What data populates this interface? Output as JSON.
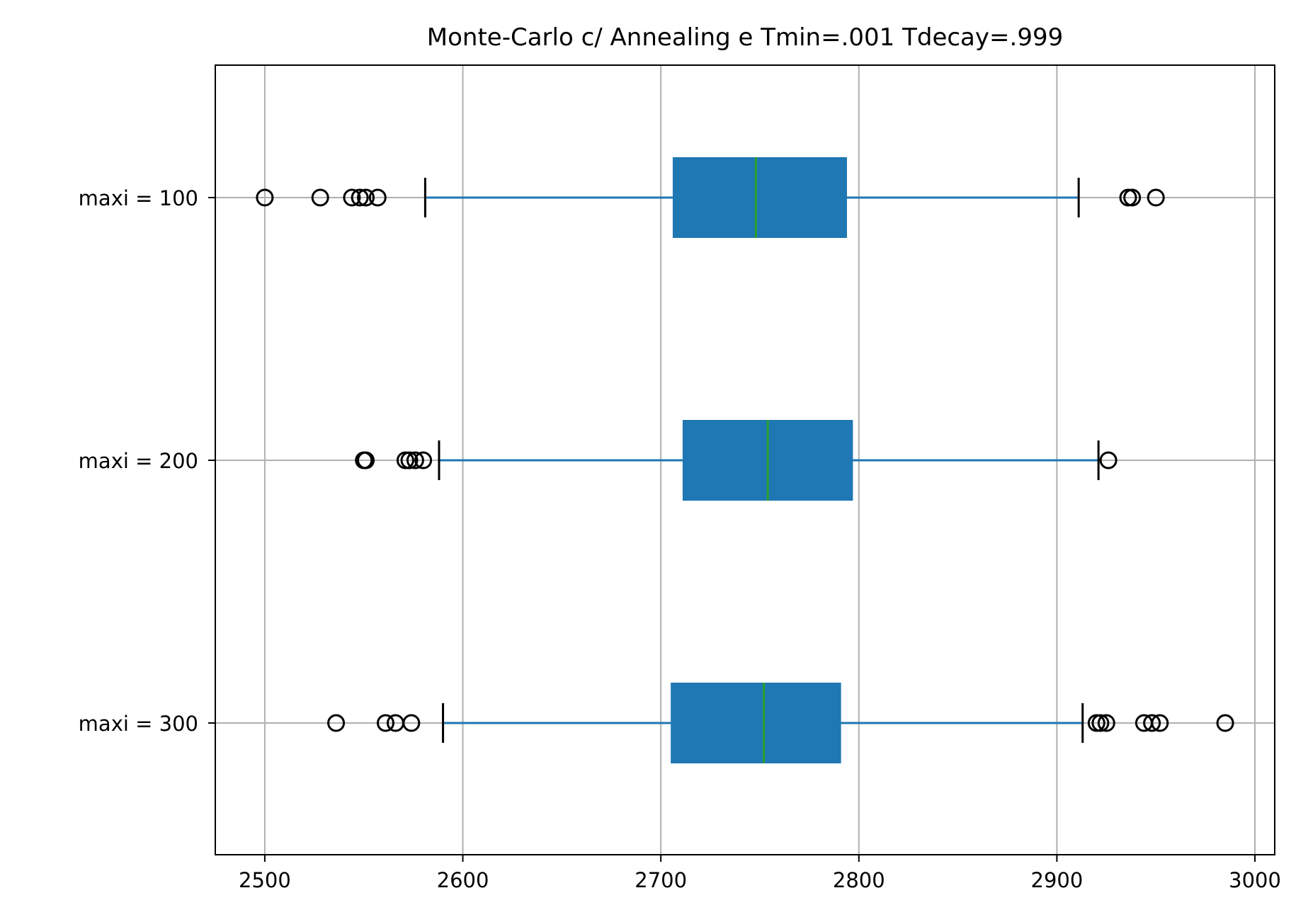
{
  "chart_data": {
    "type": "boxplot",
    "orientation": "horizontal",
    "title": "Monte-Carlo c/ Annealing e Tmin=.001 Tdecay=.999",
    "xlabel": "",
    "ylabel": "",
    "xlim": [
      2475,
      3010
    ],
    "xticks": [
      2500,
      2600,
      2700,
      2800,
      2900,
      3000
    ],
    "grid": true,
    "colors": {
      "box": "#1f77b4",
      "median": "#2ca02c",
      "whisker": "#1f77b4",
      "cap": "#000000",
      "flier": "#000000",
      "grid": "#b0b0b0"
    },
    "categories": [
      "maxi = 100",
      "maxi = 200",
      "maxi = 300"
    ],
    "boxes": [
      {
        "label": "maxi = 100",
        "whislo": 2581,
        "q1": 2706,
        "med": 2748,
        "q3": 2794,
        "whishi": 2911,
        "fliers": [
          2500,
          2528,
          2544,
          2548,
          2551,
          2557,
          2936,
          2938,
          2950
        ]
      },
      {
        "label": "maxi = 200",
        "whislo": 2588,
        "q1": 2711,
        "med": 2754,
        "q3": 2797,
        "whishi": 2921,
        "fliers": [
          2550,
          2551,
          2571,
          2573,
          2576,
          2580,
          2926
        ]
      },
      {
        "label": "maxi = 300",
        "whislo": 2590,
        "q1": 2705,
        "med": 2752,
        "q3": 2791,
        "whishi": 2913,
        "fliers": [
          2536,
          2561,
          2566,
          2574,
          2920,
          2922,
          2925,
          2944,
          2948,
          2952,
          2985
        ]
      }
    ]
  }
}
